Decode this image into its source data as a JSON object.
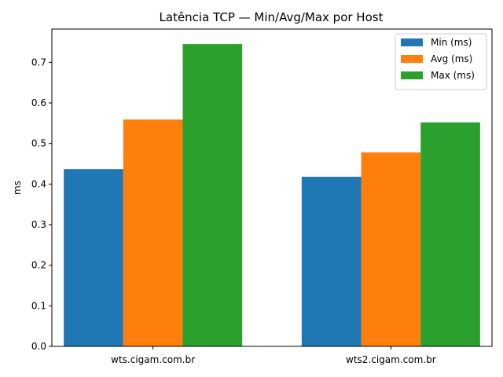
{
  "chart_data": {
    "type": "bar",
    "title": "Latência TCP — Min/Avg/Max por Host",
    "xlabel": "",
    "ylabel": "ms",
    "categories": [
      "wts.cigam.com.br",
      "wts2.cigam.com.br"
    ],
    "series": [
      {
        "name": "Min (ms)",
        "values": [
          0.437,
          0.418
        ],
        "color": "#1f77b4"
      },
      {
        "name": "Avg (ms)",
        "values": [
          0.559,
          0.478
        ],
        "color": "#ff7f0e"
      },
      {
        "name": "Max (ms)",
        "values": [
          0.745,
          0.552
        ],
        "color": "#2ca02c"
      }
    ],
    "ylim": [
      0,
      0.782
    ],
    "yticks": [
      "0.0",
      "0.1",
      "0.2",
      "0.3",
      "0.4",
      "0.5",
      "0.6",
      "0.7"
    ],
    "grid": false,
    "legend_position": "top-right"
  }
}
